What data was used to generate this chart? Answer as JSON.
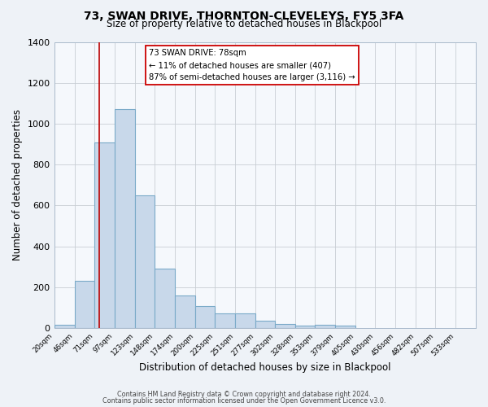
{
  "title": "73, SWAN DRIVE, THORNTON-CLEVELEYS, FY5 3FA",
  "subtitle": "Size of property relative to detached houses in Blackpool",
  "xlabel": "Distribution of detached houses by size in Blackpool",
  "ylabel": "Number of detached properties",
  "bar_color": "#c8d8ea",
  "bar_edge_color": "#7aaac8",
  "bar_heights": [
    15,
    230,
    910,
    1070,
    650,
    290,
    160,
    107,
    70,
    70,
    35,
    22,
    12,
    15,
    12
  ],
  "bin_left_edges": [
    20,
    46,
    71,
    97,
    123,
    148,
    174,
    200,
    225,
    251,
    277,
    302,
    328,
    353,
    379
  ],
  "bin_right_edges": [
    46,
    71,
    97,
    123,
    148,
    174,
    200,
    225,
    251,
    277,
    302,
    328,
    353,
    379,
    405
  ],
  "tick_labels": [
    "20sqm",
    "46sqm",
    "71sqm",
    "97sqm",
    "123sqm",
    "148sqm",
    "174sqm",
    "200sqm",
    "225sqm",
    "251sqm",
    "277sqm",
    "302sqm",
    "328sqm",
    "353sqm",
    "379sqm",
    "405sqm",
    "430sqm",
    "456sqm",
    "482sqm",
    "507sqm",
    "533sqm"
  ],
  "tick_positions": [
    20,
    46,
    71,
    97,
    123,
    148,
    174,
    200,
    225,
    251,
    277,
    302,
    328,
    353,
    379,
    405,
    430,
    456,
    482,
    507,
    533
  ],
  "xlim_left": 20,
  "xlim_right": 559,
  "ylim": [
    0,
    1400
  ],
  "yticks": [
    0,
    200,
    400,
    600,
    800,
    1000,
    1200,
    1400
  ],
  "property_line_x": 78,
  "annotation_line1": "73 SWAN DRIVE: 78sqm",
  "annotation_line2": "← 11% of detached houses are smaller (407)",
  "annotation_line3": "87% of semi-detached houses are larger (3,116) →",
  "footer_line1": "Contains HM Land Registry data © Crown copyright and database right 2024.",
  "footer_line2": "Contains public sector information licensed under the Open Government Licence v3.0.",
  "background_color": "#eef2f7",
  "plot_bg_color": "#f5f8fc",
  "grid_color": "#c8cdd4",
  "red_line_color": "#bb0000",
  "box_edge_color": "#cc0000"
}
